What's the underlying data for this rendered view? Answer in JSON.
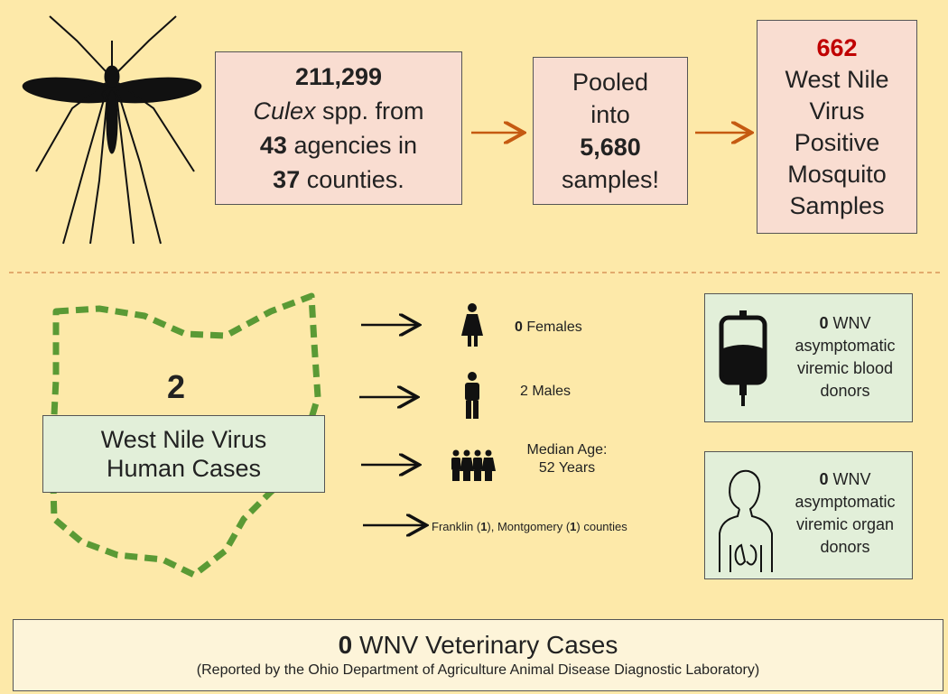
{
  "mosquito": {
    "collected": {
      "count": "211,299",
      "taxon": "Culex",
      "text1": "spp. from",
      "agencies": "43",
      "text2": "agencies in",
      "counties": "37",
      "text3": "counties."
    },
    "pooled": {
      "text1": "Pooled",
      "text2": "into",
      "samples": "5,680",
      "text3": "samples!"
    },
    "positive": {
      "count": "662",
      "lines": [
        "West Nile",
        "Virus",
        "Positive",
        "Mosquito",
        "Samples"
      ]
    }
  },
  "human": {
    "count": "2",
    "label": [
      "West Nile Virus",
      "Human Cases"
    ],
    "females": {
      "count": "0",
      "label": "Females"
    },
    "males": "2 Males",
    "median_age": {
      "label": "Median Age:",
      "value": "52 Years"
    },
    "counties": {
      "parts": [
        "Franklin (",
        "1",
        "), Montgomery (",
        "1",
        ") counties"
      ]
    }
  },
  "donors": [
    {
      "count": "0",
      "label": "WNV",
      "lines": [
        "asymptomatic",
        "viremic blood",
        "donors"
      ]
    },
    {
      "count": "0",
      "label": "WNV",
      "lines": [
        "asymptomatic",
        "viremic organ",
        "donors"
      ]
    }
  ],
  "veterinary": {
    "count": "0",
    "label": "WNV Veterinary Cases",
    "note": "(Reported by the Ohio Department of Agriculture Animal Disease Diagnostic Laboratory)"
  }
}
